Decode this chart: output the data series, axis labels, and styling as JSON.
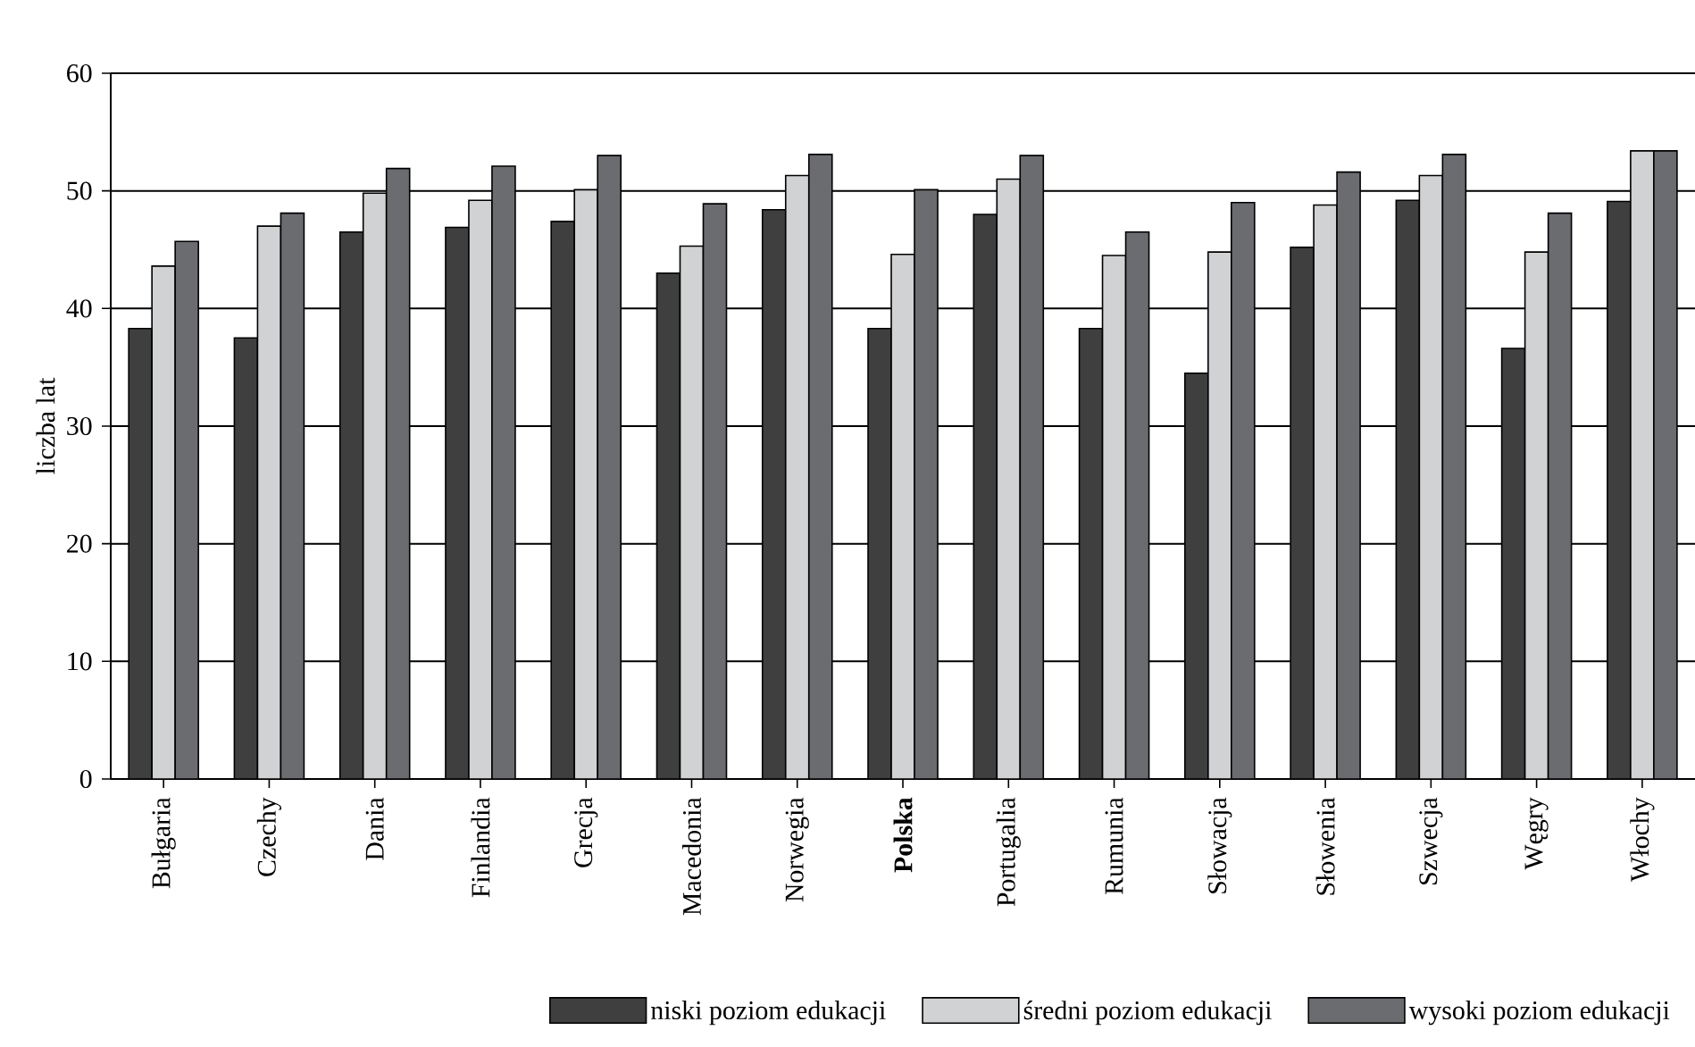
{
  "chart_data": {
    "type": "bar",
    "ylabel": "liczba lat",
    "categories": [
      "Bułgaria",
      "Czechy",
      "Dania",
      "Finlandia",
      "Grecja",
      "Macedonia",
      "Norwegia",
      "**Polska**",
      "Portugalia",
      "Rumunia",
      "Słowacja",
      "Słowenia",
      "Szwecja",
      "Węgry",
      "Włochy"
    ],
    "series": [
      {
        "name": "niski poziom edukacji",
        "color": "#3f3f3f",
        "values": [
          38.3,
          37.5,
          46.5,
          46.9,
          47.4,
          43,
          48.4,
          38.3,
          48,
          38.3,
          34.5,
          45.2,
          49.2,
          36.6,
          49.1
        ]
      },
      {
        "name": "średni poziom edukacji",
        "color": "#d1d2d4",
        "values": [
          43.6,
          47,
          49.8,
          49.2,
          50.1,
          45.3,
          51.3,
          44.6,
          51,
          44.5,
          44.8,
          48.8,
          51.3,
          44.8,
          53.4
        ]
      },
      {
        "name": "wysoki poziom edukacji",
        "color": "#6b6c70",
        "values": [
          45.7,
          48.1,
          51.9,
          52.1,
          53,
          48.9,
          53.1,
          50.1,
          53,
          46.5,
          49,
          51.6,
          53.1,
          48.1,
          53.4
        ]
      }
    ],
    "ylim": [
      0,
      60
    ],
    "yticks": [
      0,
      10,
      20,
      30,
      40,
      50,
      60
    ],
    "grid": "y",
    "legend": "bottom"
  }
}
